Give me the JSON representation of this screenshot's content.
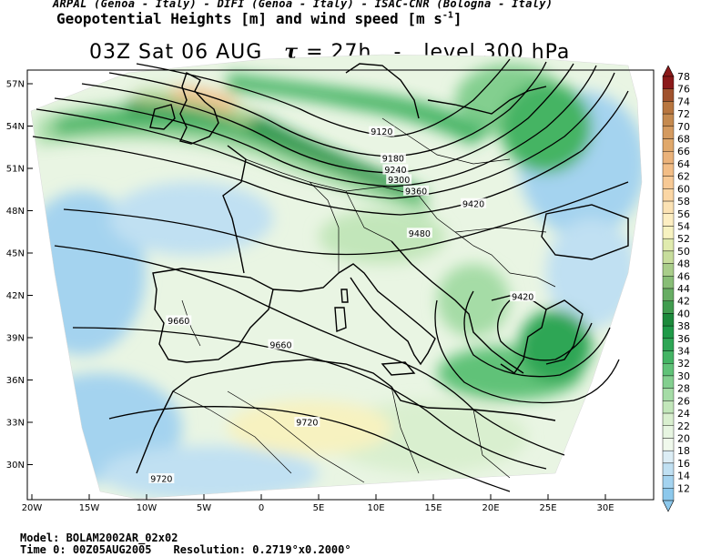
{
  "header": {
    "credits": "ARPAL (Genoa - Italy)  -  DIFI (Genoa - Italy)  -  ISAC-CNR (Bologna - Italy)",
    "product_prefix": "Geopotential Heights [m] and wind speed [m s",
    "product_exp": "-1",
    "product_suffix": "]"
  },
  "title": {
    "time": "03Z Sat 06 AUG",
    "tau_symbol": "τ",
    "tau_value": "= 27h",
    "separator": "-",
    "level": "level 300 hPa"
  },
  "map": {
    "lat_labels": [
      "57N",
      "54N",
      "51N",
      "48N",
      "45N",
      "42N",
      "39N",
      "36N",
      "33N",
      "30N"
    ],
    "lat_values": [
      57,
      54,
      51,
      48,
      45,
      42,
      39,
      36,
      33,
      30
    ],
    "lon_labels": [
      "20W",
      "15W",
      "10W",
      "5W",
      "0",
      "5E",
      "10E",
      "15E",
      "20E",
      "25E",
      "30E"
    ],
    "lon_values": [
      -20,
      -15,
      -10,
      -5,
      0,
      5,
      10,
      15,
      20,
      25,
      30
    ],
    "contour_labels": [
      {
        "text": "9120",
        "lon": 10.5,
        "lat": 53.6
      },
      {
        "text": "9180",
        "lon": 11.5,
        "lat": 51.7
      },
      {
        "text": "9240",
        "lon": 11.7,
        "lat": 50.9
      },
      {
        "text": "9300",
        "lon": 12.0,
        "lat": 50.2
      },
      {
        "text": "9360",
        "lon": 13.5,
        "lat": 49.4
      },
      {
        "text": "9420",
        "lon": 18.5,
        "lat": 48.5
      },
      {
        "text": "9480",
        "lon": 13.8,
        "lat": 46.4
      },
      {
        "text": "9420",
        "lon": 22.8,
        "lat": 41.9
      },
      {
        "text": "9660",
        "lon": -7.2,
        "lat": 40.2
      },
      {
        "text": "9660",
        "lon": 1.7,
        "lat": 38.5
      },
      {
        "text": "9720",
        "lon": 4.0,
        "lat": 33.0
      },
      {
        "text": "9720",
        "lon": -8.7,
        "lat": 29.0
      }
    ]
  },
  "colorbar": {
    "labels": [
      "78",
      "76",
      "74",
      "72",
      "70",
      "68",
      "66",
      "64",
      "62",
      "60",
      "58",
      "56",
      "54",
      "52",
      "50",
      "48",
      "46",
      "44",
      "42",
      "40",
      "38",
      "36",
      "34",
      "32",
      "30",
      "28",
      "26",
      "24",
      "22",
      "20",
      "18",
      "16",
      "14",
      "12"
    ],
    "colors": [
      "#8b1a1a",
      "#a0522d",
      "#b8763f",
      "#c58a4f",
      "#d49a5f",
      "#e0a86b",
      "#eab27a",
      "#f2bd86",
      "#f7c995",
      "#fbd6a4",
      "#fbe2b4",
      "#fdeec2",
      "#f7f2c0",
      "#e0ebae",
      "#c7dd9c",
      "#a9cd8a",
      "#88bd76",
      "#67ad63",
      "#419c4f",
      "#1d8a3c",
      "#1f9a48",
      "#2ea655",
      "#44b464",
      "#60c278",
      "#83cf8f",
      "#a5dca6",
      "#c2e6ba",
      "#d9efcf",
      "#e7f5e1",
      "#f0f9ec",
      "#dcedf5",
      "#c0e0f2",
      "#a4d3ef",
      "#8cc8ec"
    ]
  },
  "footer": {
    "model_label": "Model:",
    "model_value": "BOLAM2002AR_02x02",
    "time0_label": "Time 0:",
    "time0_value": "00Z05AUG2005",
    "resolution_label": "Resolution:",
    "resolution_value": "0.2719°x0.2000°"
  }
}
